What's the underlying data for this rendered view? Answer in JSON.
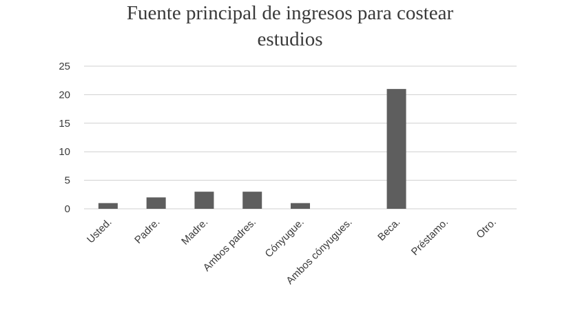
{
  "chart_data": {
    "type": "bar",
    "title": [
      "Fuente principal de ingresos para costear",
      "estudios"
    ],
    "xlabel": "",
    "ylabel": "",
    "ylim": [
      0,
      25
    ],
    "yticks": [
      0,
      5,
      10,
      15,
      20,
      25
    ],
    "grid": true,
    "categories": [
      "Usted.",
      "Padre.",
      "Madre.",
      "Ambos padres.",
      "Cónyugue.",
      "Ambos cónyugues.",
      "Beca.",
      "Préstamo.",
      "Otro."
    ],
    "values": [
      1,
      2,
      3,
      3,
      1,
      0,
      21,
      0,
      0
    ],
    "bar_color": "#5e5e5e",
    "grid_color": "#cfcfcf"
  }
}
